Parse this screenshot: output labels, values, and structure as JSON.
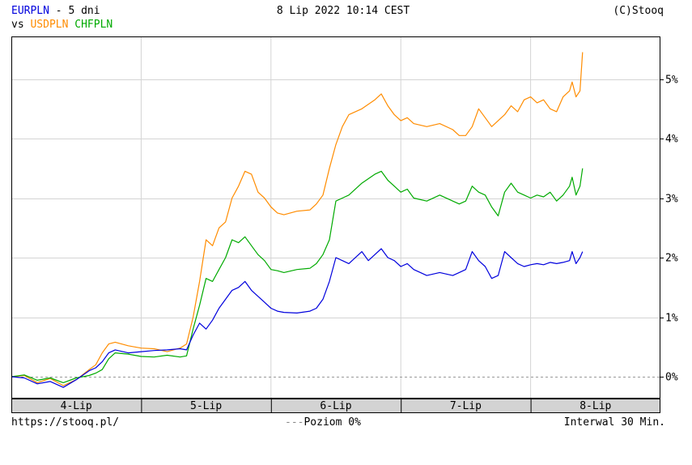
{
  "header": {
    "main_series": "EURPLN",
    "sep": " - ",
    "period": "5 dni",
    "datetime": "8 Lip 2022 10:14 CEST",
    "copyright": "(C)Stooq",
    "vs_label": "vs ",
    "compare1": "USDPLN",
    "compare2": "CHFPLN"
  },
  "footer": {
    "url": "https://stooq.pl/",
    "baseline_dash": "---",
    "baseline_label": "Poziom 0%",
    "interval": "Interwal 30 Min."
  },
  "colors": {
    "EURPLN": "#0000dd",
    "USDPLN": "#ff8c00",
    "CHFPLN": "#00aa00"
  },
  "chart_data": {
    "type": "line",
    "x_unit": "trading day (0 = start of 4-Lip)",
    "categories": [
      "4-Lip",
      "5-Lip",
      "6-Lip",
      "7-Lip",
      "8-Lip"
    ],
    "yticks": [
      "0%",
      "1%",
      "2%",
      "3%",
      "4%",
      "5%"
    ],
    "ylim": [
      -0.35,
      5.6
    ],
    "xlim": [
      0,
      4.4
    ],
    "grid": true,
    "baseline": 0,
    "series": [
      {
        "name": "USDPLN",
        "points": [
          [
            0,
            0
          ],
          [
            0.1,
            0.02
          ],
          [
            0.2,
            -0.1
          ],
          [
            0.3,
            -0.03
          ],
          [
            0.4,
            -0.15
          ],
          [
            0.5,
            -0.05
          ],
          [
            0.6,
            0.12
          ],
          [
            0.65,
            0.2
          ],
          [
            0.7,
            0.4
          ],
          [
            0.75,
            0.55
          ],
          [
            0.8,
            0.58
          ],
          [
            0.9,
            0.52
          ],
          [
            1.0,
            0.48
          ],
          [
            1.1,
            0.47
          ],
          [
            1.2,
            0.42
          ],
          [
            1.3,
            0.48
          ],
          [
            1.35,
            0.55
          ],
          [
            1.4,
            1.0
          ],
          [
            1.45,
            1.6
          ],
          [
            1.5,
            2.3
          ],
          [
            1.55,
            2.2
          ],
          [
            1.6,
            2.5
          ],
          [
            1.65,
            2.6
          ],
          [
            1.7,
            3.0
          ],
          [
            1.75,
            3.2
          ],
          [
            1.8,
            3.45
          ],
          [
            1.85,
            3.4
          ],
          [
            1.9,
            3.1
          ],
          [
            1.95,
            3.0
          ],
          [
            2.0,
            2.85
          ],
          [
            2.05,
            2.75
          ],
          [
            2.1,
            2.72
          ],
          [
            2.2,
            2.78
          ],
          [
            2.3,
            2.8
          ],
          [
            2.35,
            2.9
          ],
          [
            2.4,
            3.05
          ],
          [
            2.45,
            3.5
          ],
          [
            2.5,
            3.9
          ],
          [
            2.55,
            4.2
          ],
          [
            2.6,
            4.4
          ],
          [
            2.7,
            4.5
          ],
          [
            2.8,
            4.65
          ],
          [
            2.85,
            4.75
          ],
          [
            2.9,
            4.55
          ],
          [
            2.95,
            4.4
          ],
          [
            3.0,
            4.3
          ],
          [
            3.05,
            4.35
          ],
          [
            3.1,
            4.25
          ],
          [
            3.2,
            4.2
          ],
          [
            3.3,
            4.25
          ],
          [
            3.4,
            4.15
          ],
          [
            3.45,
            4.05
          ],
          [
            3.5,
            4.05
          ],
          [
            3.55,
            4.2
          ],
          [
            3.6,
            4.5
          ],
          [
            3.65,
            4.35
          ],
          [
            3.7,
            4.2
          ],
          [
            3.8,
            4.4
          ],
          [
            3.85,
            4.55
          ],
          [
            3.9,
            4.45
          ],
          [
            3.95,
            4.65
          ],
          [
            4.0,
            4.7
          ],
          [
            4.05,
            4.6
          ],
          [
            4.1,
            4.65
          ],
          [
            4.15,
            4.5
          ],
          [
            4.2,
            4.45
          ],
          [
            4.25,
            4.7
          ],
          [
            4.3,
            4.8
          ],
          [
            4.32,
            4.95
          ],
          [
            4.35,
            4.7
          ],
          [
            4.38,
            4.8
          ],
          [
            4.4,
            5.45
          ]
        ]
      },
      {
        "name": "CHFPLN",
        "points": [
          [
            0,
            0
          ],
          [
            0.1,
            0.03
          ],
          [
            0.2,
            -0.06
          ],
          [
            0.3,
            -0.02
          ],
          [
            0.4,
            -0.1
          ],
          [
            0.5,
            -0.02
          ],
          [
            0.6,
            0.02
          ],
          [
            0.65,
            0.06
          ],
          [
            0.7,
            0.12
          ],
          [
            0.75,
            0.3
          ],
          [
            0.8,
            0.4
          ],
          [
            0.9,
            0.38
          ],
          [
            1.0,
            0.34
          ],
          [
            1.1,
            0.33
          ],
          [
            1.2,
            0.36
          ],
          [
            1.3,
            0.33
          ],
          [
            1.35,
            0.35
          ],
          [
            1.4,
            0.8
          ],
          [
            1.45,
            1.2
          ],
          [
            1.5,
            1.65
          ],
          [
            1.55,
            1.6
          ],
          [
            1.6,
            1.8
          ],
          [
            1.65,
            2.0
          ],
          [
            1.7,
            2.3
          ],
          [
            1.75,
            2.25
          ],
          [
            1.8,
            2.35
          ],
          [
            1.85,
            2.2
          ],
          [
            1.9,
            2.05
          ],
          [
            1.95,
            1.95
          ],
          [
            2.0,
            1.8
          ],
          [
            2.05,
            1.78
          ],
          [
            2.1,
            1.75
          ],
          [
            2.2,
            1.8
          ],
          [
            2.3,
            1.82
          ],
          [
            2.35,
            1.9
          ],
          [
            2.4,
            2.05
          ],
          [
            2.45,
            2.3
          ],
          [
            2.5,
            2.95
          ],
          [
            2.55,
            3.0
          ],
          [
            2.6,
            3.05
          ],
          [
            2.7,
            3.25
          ],
          [
            2.8,
            3.4
          ],
          [
            2.85,
            3.45
          ],
          [
            2.9,
            3.3
          ],
          [
            2.95,
            3.2
          ],
          [
            3.0,
            3.1
          ],
          [
            3.05,
            3.15
          ],
          [
            3.1,
            3.0
          ],
          [
            3.2,
            2.95
          ],
          [
            3.3,
            3.05
          ],
          [
            3.4,
            2.95
          ],
          [
            3.45,
            2.9
          ],
          [
            3.5,
            2.95
          ],
          [
            3.55,
            3.2
          ],
          [
            3.6,
            3.1
          ],
          [
            3.65,
            3.05
          ],
          [
            3.7,
            2.85
          ],
          [
            3.75,
            2.7
          ],
          [
            3.8,
            3.1
          ],
          [
            3.85,
            3.25
          ],
          [
            3.9,
            3.1
          ],
          [
            3.95,
            3.05
          ],
          [
            4.0,
            3.0
          ],
          [
            4.05,
            3.05
          ],
          [
            4.1,
            3.02
          ],
          [
            4.15,
            3.1
          ],
          [
            4.2,
            2.95
          ],
          [
            4.25,
            3.05
          ],
          [
            4.3,
            3.2
          ],
          [
            4.32,
            3.35
          ],
          [
            4.35,
            3.05
          ],
          [
            4.38,
            3.2
          ],
          [
            4.4,
            3.5
          ]
        ]
      },
      {
        "name": "EURPLN",
        "points": [
          [
            0,
            0
          ],
          [
            0.1,
            -0.02
          ],
          [
            0.2,
            -0.12
          ],
          [
            0.3,
            -0.08
          ],
          [
            0.4,
            -0.18
          ],
          [
            0.5,
            -0.05
          ],
          [
            0.6,
            0.1
          ],
          [
            0.65,
            0.15
          ],
          [
            0.7,
            0.25
          ],
          [
            0.75,
            0.4
          ],
          [
            0.8,
            0.45
          ],
          [
            0.9,
            0.4
          ],
          [
            1.0,
            0.42
          ],
          [
            1.1,
            0.44
          ],
          [
            1.2,
            0.45
          ],
          [
            1.3,
            0.47
          ],
          [
            1.35,
            0.45
          ],
          [
            1.4,
            0.7
          ],
          [
            1.45,
            0.9
          ],
          [
            1.5,
            0.8
          ],
          [
            1.55,
            0.95
          ],
          [
            1.6,
            1.15
          ],
          [
            1.65,
            1.3
          ],
          [
            1.7,
            1.45
          ],
          [
            1.75,
            1.5
          ],
          [
            1.8,
            1.6
          ],
          [
            1.85,
            1.45
          ],
          [
            1.9,
            1.35
          ],
          [
            1.95,
            1.25
          ],
          [
            2.0,
            1.15
          ],
          [
            2.05,
            1.1
          ],
          [
            2.1,
            1.08
          ],
          [
            2.2,
            1.07
          ],
          [
            2.3,
            1.1
          ],
          [
            2.35,
            1.15
          ],
          [
            2.4,
            1.3
          ],
          [
            2.45,
            1.6
          ],
          [
            2.5,
            2.0
          ],
          [
            2.55,
            1.95
          ],
          [
            2.6,
            1.9
          ],
          [
            2.7,
            2.1
          ],
          [
            2.75,
            1.95
          ],
          [
            2.8,
            2.05
          ],
          [
            2.85,
            2.15
          ],
          [
            2.9,
            2.0
          ],
          [
            2.95,
            1.95
          ],
          [
            3.0,
            1.85
          ],
          [
            3.05,
            1.9
          ],
          [
            3.1,
            1.8
          ],
          [
            3.2,
            1.7
          ],
          [
            3.3,
            1.75
          ],
          [
            3.4,
            1.7
          ],
          [
            3.45,
            1.75
          ],
          [
            3.5,
            1.8
          ],
          [
            3.55,
            2.1
          ],
          [
            3.6,
            1.95
          ],
          [
            3.65,
            1.85
          ],
          [
            3.7,
            1.65
          ],
          [
            3.75,
            1.7
          ],
          [
            3.8,
            2.1
          ],
          [
            3.85,
            2.0
          ],
          [
            3.9,
            1.9
          ],
          [
            3.95,
            1.85
          ],
          [
            4.0,
            1.88
          ],
          [
            4.05,
            1.9
          ],
          [
            4.1,
            1.88
          ],
          [
            4.15,
            1.92
          ],
          [
            4.2,
            1.9
          ],
          [
            4.25,
            1.92
          ],
          [
            4.3,
            1.95
          ],
          [
            4.32,
            2.1
          ],
          [
            4.35,
            1.9
          ],
          [
            4.38,
            2.0
          ],
          [
            4.4,
            2.1
          ]
        ]
      }
    ]
  }
}
